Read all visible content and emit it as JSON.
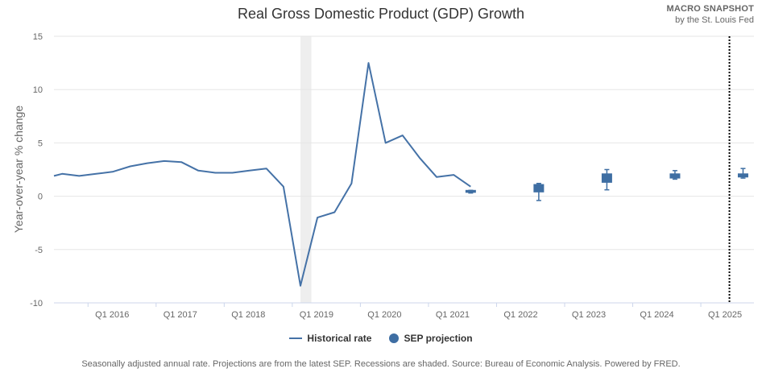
{
  "brand": {
    "name": "MACRO SNAPSHOT",
    "subtitle": "by the St. Louis Fed"
  },
  "legend": {
    "historical": "Historical rate",
    "projection": "SEP projection"
  },
  "footer": "Seasonally adjusted annual rate. Projections are from the latest SEP. Recessions are shaded. Source: Bureau of Economic Analysis. Powered by FRED.",
  "colors": {
    "series": "#4572a7",
    "projection": "#3e6ea3",
    "recession": "#eeeeee",
    "grid": "#e6e6e6",
    "text": "#666666"
  },
  "chart_data": {
    "type": "line",
    "title": "Real Gross Domestic Product (GDP) Growth",
    "xlabel": "",
    "ylabel": "Year-over-year % change",
    "ylim": [
      -10,
      15
    ],
    "yticks": [
      -10,
      -5,
      0,
      5,
      10,
      15
    ],
    "xlim": [
      2015.5,
      2025.78
    ],
    "xticks": [
      {
        "x": 2016.0,
        "label": "Q1 2016"
      },
      {
        "x": 2017.0,
        "label": "Q1 2017"
      },
      {
        "x": 2018.0,
        "label": "Q1 2018"
      },
      {
        "x": 2019.0,
        "label": "Q1 2019"
      },
      {
        "x": 2020.0,
        "label": "Q1 2020"
      },
      {
        "x": 2021.0,
        "label": "Q1 2021"
      },
      {
        "x": 2022.0,
        "label": "Q1 2022"
      },
      {
        "x": 2023.0,
        "label": "Q1 2023"
      },
      {
        "x": 2024.0,
        "label": "Q1 2024"
      },
      {
        "x": 2025.0,
        "label": "Q1 2025"
      }
    ],
    "recessions": [
      {
        "start": 2019.12,
        "end": 2019.28
      }
    ],
    "forecast_marker_x": 2025.42,
    "series": [
      {
        "name": "Historical rate",
        "x": [
          2015.5,
          2015.62,
          2015.87,
          2016.12,
          2016.37,
          2016.62,
          2016.87,
          2017.12,
          2017.37,
          2017.62,
          2017.87,
          2018.12,
          2018.37,
          2018.62,
          2018.87,
          2019.12,
          2019.37,
          2019.62,
          2019.87,
          2020.12,
          2020.37,
          2020.62,
          2020.87,
          2021.12,
          2021.37,
          2021.62
        ],
        "values": [
          1.9,
          2.1,
          1.9,
          2.1,
          2.3,
          2.8,
          3.1,
          3.3,
          3.2,
          2.4,
          2.2,
          2.2,
          2.4,
          2.6,
          0.9,
          -8.4,
          -2.0,
          -1.5,
          1.2,
          12.5,
          5.0,
          5.7,
          3.6,
          1.8,
          2.0,
          0.9
        ]
      }
    ],
    "projections": [
      {
        "name": "SEP projection",
        "x": 2021.62,
        "low": 0.3,
        "q1": 0.45,
        "q3": 0.55,
        "high": 0.55
      },
      {
        "name": "SEP projection",
        "x": 2022.62,
        "low": -0.4,
        "q1": 0.4,
        "q3": 1.1,
        "high": 1.2
      },
      {
        "name": "SEP projection",
        "x": 2023.62,
        "low": 0.6,
        "q1": 1.3,
        "q3": 2.1,
        "high": 2.5
      },
      {
        "name": "SEP projection",
        "x": 2024.62,
        "low": 1.6,
        "q1": 1.7,
        "q3": 2.1,
        "high": 2.4
      },
      {
        "name": "SEP projection",
        "x": 2025.62,
        "low": 1.7,
        "q1": 1.8,
        "q3": 2.1,
        "high": 2.6
      }
    ]
  }
}
